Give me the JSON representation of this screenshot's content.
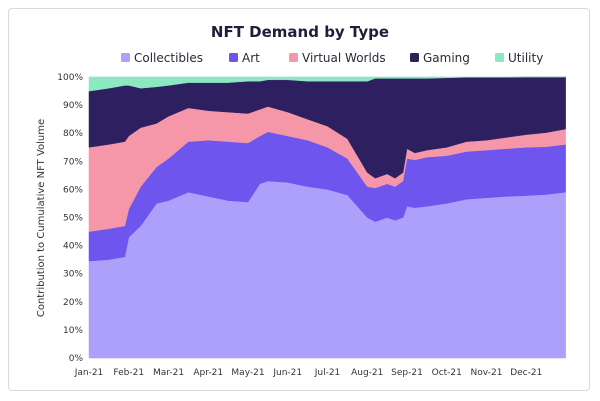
{
  "chart_data": {
    "type": "area",
    "title": "NFT Demand by Type",
    "xlabel": "",
    "ylabel": "Contribution to Cumulative NFT Volume",
    "stacked": true,
    "legend_position": "top",
    "ylim": [
      0,
      100
    ],
    "y_ticks": [
      "0%",
      "10%",
      "20%",
      "30%",
      "40%",
      "50%",
      "60%",
      "70%",
      "80%",
      "90%",
      "100%"
    ],
    "x_ticks": [
      "Jan-21",
      "Feb-21",
      "Mar-21",
      "Apr-21",
      "May-21",
      "Jun-21",
      "Jul-21",
      "Aug-21",
      "Sep-21",
      "Oct-21",
      "Nov-21",
      "Dec-21"
    ],
    "x": [
      0,
      0.5,
      0.9,
      1.0,
      1.3,
      1.7,
      2.0,
      2.5,
      3.0,
      3.5,
      4.0,
      4.3,
      4.5,
      5.0,
      5.5,
      6.0,
      6.5,
      7.0,
      7.2,
      7.5,
      7.7,
      7.9,
      8.0,
      8.2,
      8.5,
      9.0,
      9.5,
      10.0,
      10.5,
      11.0,
      11.5,
      11.99
    ],
    "series": [
      {
        "name": "Collectibles",
        "color": "#ada0fb",
        "values": [
          34.5,
          35,
          36,
          43,
          47,
          55,
          56,
          59,
          57.5,
          56,
          55.5,
          62,
          63,
          62.5,
          61,
          60,
          58,
          50,
          48.5,
          50,
          49,
          50,
          54,
          53.5,
          54,
          55,
          56.5,
          57,
          57.5,
          57.8,
          58.2,
          59
        ]
      },
      {
        "name": "Art",
        "color": "#6d55ee",
        "values": [
          10.5,
          11,
          11,
          10,
          14,
          13,
          15,
          18,
          20,
          21,
          21,
          17,
          17.5,
          16.5,
          16.5,
          15,
          13,
          11,
          12,
          12,
          12,
          13,
          17,
          17,
          17.5,
          17,
          17,
          17,
          17,
          17.2,
          17,
          17
        ]
      },
      {
        "name": "Virtual Worlds",
        "color": "#f597a8",
        "values": [
          30,
          30,
          30,
          26,
          21,
          15.5,
          15,
          12,
          10.5,
          10.5,
          10.5,
          9.5,
          9,
          8.5,
          7.5,
          7.5,
          7,
          5,
          3.5,
          3.5,
          3,
          3,
          3.5,
          2.5,
          2.5,
          3,
          3.5,
          3.5,
          4,
          4.5,
          5,
          5.5
        ]
      },
      {
        "name": "Gaming",
        "color": "#2e2060",
        "values": [
          20,
          20,
          20,
          18,
          14,
          13,
          11,
          9,
          10,
          10.5,
          11.5,
          10,
          9.5,
          11.5,
          13.5,
          16,
          20.5,
          32.5,
          35.5,
          34,
          35.5,
          33.5,
          25,
          26.5,
          25.5,
          24.7,
          22.9,
          22.4,
          21.4,
          20.5,
          19.8,
          18.5
        ]
      },
      {
        "name": "Utility",
        "color": "#8be8c0",
        "values": [
          5,
          4,
          3,
          3,
          4,
          3.5,
          3,
          2,
          2,
          2,
          1.5,
          1.5,
          1,
          1,
          1.5,
          1.5,
          1.5,
          1.5,
          0.5,
          0.5,
          0.5,
          0.5,
          0.5,
          0.5,
          0.5,
          0.3,
          0.1,
          0.1,
          0.1,
          0,
          0,
          0
        ]
      }
    ]
  }
}
